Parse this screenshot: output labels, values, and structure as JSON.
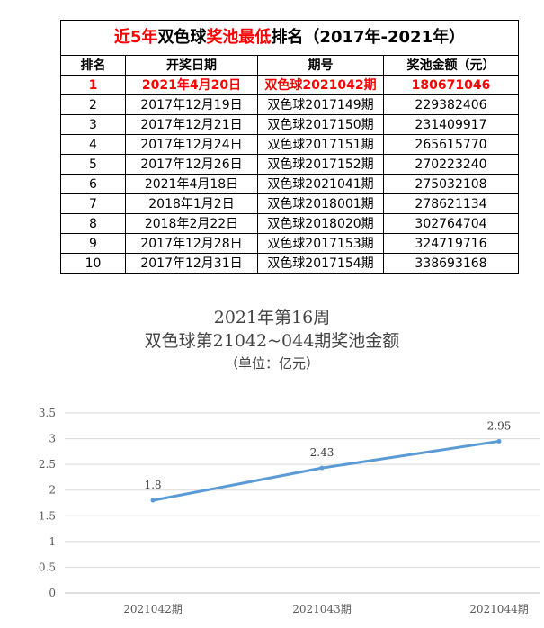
{
  "table": {
    "title_parts": [
      "近5年",
      "双色球",
      "奖池最低",
      "排名（2017年-2021年）"
    ],
    "headers": [
      "排名",
      "开奖日期",
      "期号",
      "奖池金额（元）"
    ],
    "rows": [
      [
        "1",
        "2021年4月20日",
        "双色球2021042期",
        "180671046"
      ],
      [
        "2",
        "2017年12月19日",
        "双色球2017149期",
        "229382406"
      ],
      [
        "3",
        "2017年12月21日",
        "双色球2017150期",
        "231409917"
      ],
      [
        "4",
        "2017年12月24日",
        "双色球2017151期",
        "265615770"
      ],
      [
        "5",
        "2017年12月26日",
        "双色球2017152期",
        "270223240"
      ],
      [
        "6",
        "2021年4月18日",
        "双色球2021041期",
        "275032108"
      ],
      [
        "7",
        "2018年1月2日",
        "双色球2018001期",
        "278621134"
      ],
      [
        "8",
        "2018年2月22日",
        "双色球2018020期",
        "302764704"
      ],
      [
        "9",
        "2017年12月28日",
        "双色球2017153期",
        "324719716"
      ],
      [
        "10",
        "2017年12月31日",
        "双色球2017154期",
        "338693168"
      ]
    ],
    "highlight_color": "#ff0000"
  },
  "chart_data": {
    "type": "line",
    "title": "2021年第16周",
    "subtitle": "双色球第21042~044期奖池金额",
    "unit_note": "（单位：亿元）",
    "categories": [
      "2021042期",
      "2021043期",
      "2021044期"
    ],
    "series": [
      {
        "values": [
          1.8,
          2.43,
          2.95
        ],
        "color": "#5b9bd5"
      }
    ],
    "data_labels": [
      "1.8",
      "2.43",
      "2.95"
    ],
    "y_ticks": [
      "0",
      "0.5",
      "1",
      "1.5",
      "2",
      "2.5",
      "3",
      "3.5"
    ],
    "ylim": [
      0,
      3.5
    ],
    "grid": true,
    "legend": "none"
  }
}
